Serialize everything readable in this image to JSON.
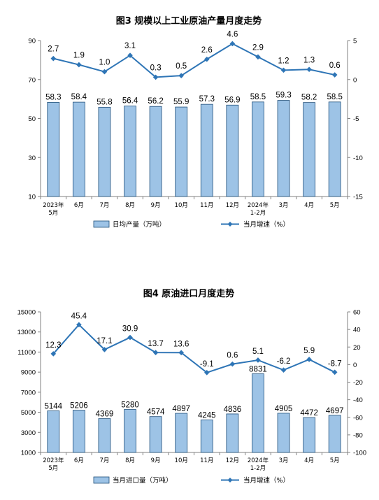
{
  "chart_data": [
    {
      "type": "bar+line",
      "title": "图3  规模以上工业原油产量月度走势",
      "categories": [
        {
          "line1": "2023年",
          "line2": "5月"
        },
        {
          "line1": "6月",
          "line2": ""
        },
        {
          "line1": "7月",
          "line2": ""
        },
        {
          "line1": "8月",
          "line2": ""
        },
        {
          "line1": "9月",
          "line2": ""
        },
        {
          "line1": "10月",
          "line2": ""
        },
        {
          "line1": "11月",
          "line2": ""
        },
        {
          "line1": "12月",
          "line2": ""
        },
        {
          "line1": "2024年",
          "line2": "1-2月"
        },
        {
          "line1": "3月",
          "line2": ""
        },
        {
          "line1": "4月",
          "line2": ""
        },
        {
          "line1": "5月",
          "line2": ""
        }
      ],
      "bar_series": {
        "name": "日均产量（万吨）",
        "values": [
          58.3,
          58.4,
          55.8,
          56.4,
          56.2,
          55.9,
          57.3,
          56.9,
          58.5,
          59.3,
          58.2,
          58.5
        ],
        "color": "#9DC3E6",
        "stroke": "#1F4E79"
      },
      "line_series": {
        "name": "当月增速（%）",
        "values": [
          2.7,
          1.9,
          1.0,
          3.1,
          0.3,
          0.5,
          2.6,
          4.6,
          2.9,
          1.2,
          1.3,
          0.6
        ],
        "color": "#2E75B6"
      },
      "left_axis": {
        "ticks": [
          "90",
          "70",
          "50",
          "30",
          "10"
        ],
        "ylim": [
          10,
          90
        ]
      },
      "right_axis": {
        "ticks": [
          "5",
          "0",
          "-5",
          "-10",
          "-15"
        ],
        "ylim": [
          -15,
          5
        ]
      }
    },
    {
      "type": "bar+line",
      "title": "图4  原油进口月度走势",
      "categories": [
        {
          "line1": "2023年",
          "line2": "5月"
        },
        {
          "line1": "6月",
          "line2": ""
        },
        {
          "line1": "7月",
          "line2": ""
        },
        {
          "line1": "8月",
          "line2": ""
        },
        {
          "line1": "9月",
          "line2": ""
        },
        {
          "line1": "10月",
          "line2": ""
        },
        {
          "line1": "11月",
          "line2": ""
        },
        {
          "line1": "12月",
          "line2": ""
        },
        {
          "line1": "2024年",
          "line2": "1-2月"
        },
        {
          "line1": "3月",
          "line2": ""
        },
        {
          "line1": "4月",
          "line2": ""
        },
        {
          "line1": "5月",
          "line2": ""
        }
      ],
      "bar_series": {
        "name": "当月进口量（万吨）",
        "values": [
          5144,
          5206,
          4369,
          5280,
          4574,
          4897,
          4245,
          4836,
          8831,
          4905,
          4472,
          4697
        ],
        "color": "#9DC3E6",
        "stroke": "#1F4E79"
      },
      "line_series": {
        "name": "当月增速（%）",
        "values": [
          12.3,
          45.4,
          17.1,
          30.9,
          13.7,
          13.6,
          -9.1,
          0.6,
          5.1,
          -6.2,
          5.9,
          -8.7
        ],
        "color": "#2E75B6"
      },
      "left_axis": {
        "ticks": [
          "15000",
          "13000",
          "11000",
          "9000",
          "7000",
          "5000",
          "3000",
          "1000"
        ],
        "ylim": [
          1000,
          15000
        ]
      },
      "right_axis": {
        "ticks": [
          "60",
          "40",
          "20",
          "0",
          "-20",
          "-40",
          "-60",
          "-80",
          "-100"
        ],
        "ylim": [
          -100,
          60
        ]
      }
    }
  ]
}
